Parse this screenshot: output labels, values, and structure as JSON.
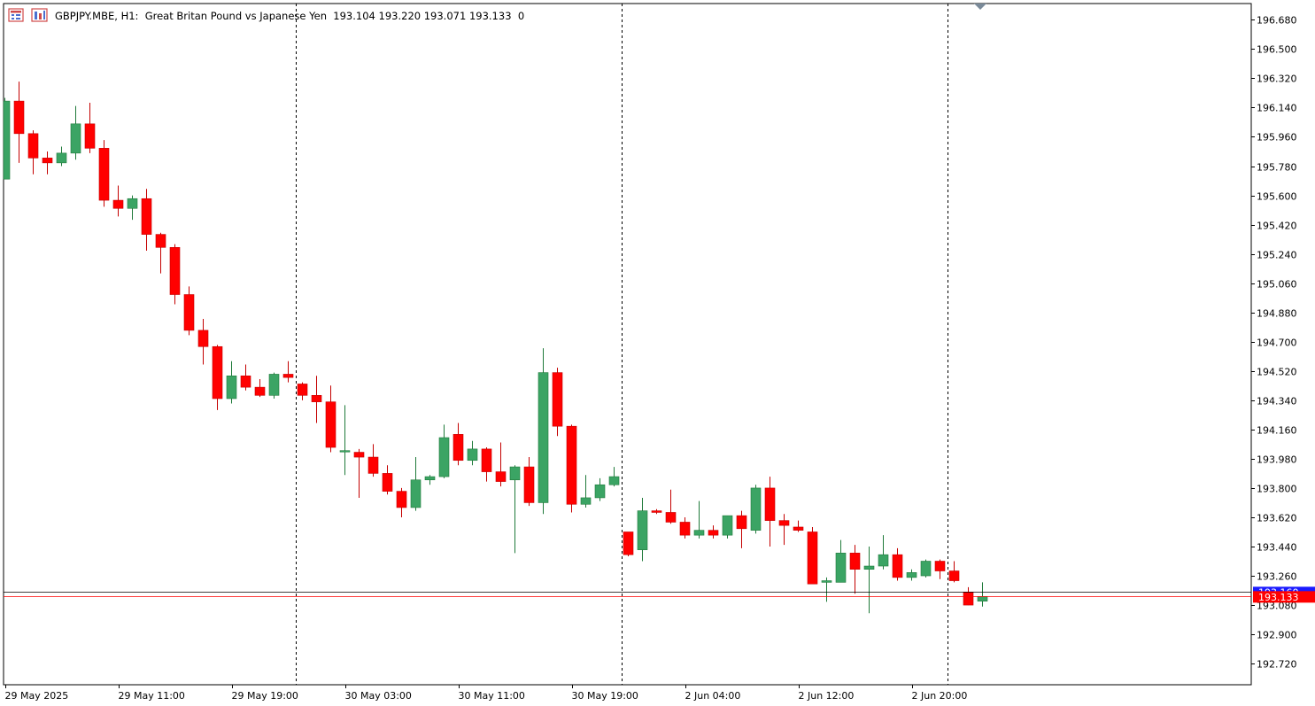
{
  "header": {
    "symbol": "GBPJPY.MBE",
    "timeframe": "H1",
    "description": "Great Britan Pound vs Japanese Yen",
    "open": "193.104",
    "high": "193.220",
    "low": "193.071",
    "close": "193.133",
    "volume": "0"
  },
  "price_tags": {
    "ask": "193.160",
    "bid": "193.133"
  },
  "colors": {
    "bull": "#3ba464",
    "bear": "#ff0000",
    "ask_line": "#1a1aff",
    "bid_line": "#ff0000",
    "grid": "#000000",
    "axis": "#000000"
  },
  "icons": [
    "menu-icon",
    "chart-type-icon"
  ],
  "chart_data": {
    "type": "candlestick",
    "ylim": [
      192.59,
      196.78
    ],
    "y_ticks": [
      "196.680",
      "196.500",
      "196.320",
      "196.140",
      "195.960",
      "195.780",
      "195.600",
      "195.420",
      "195.240",
      "195.060",
      "194.880",
      "194.700",
      "194.520",
      "194.340",
      "194.160",
      "193.980",
      "193.800",
      "193.620",
      "193.440",
      "193.260",
      "193.080",
      "192.900",
      "192.720"
    ],
    "x_ticks": [
      {
        "label": "29 May 2025",
        "bar": 0
      },
      {
        "label": "29 May 11:00",
        "bar": 8
      },
      {
        "label": "29 May 19:00",
        "bar": 16
      },
      {
        "label": "30 May 03:00",
        "bar": 24
      },
      {
        "label": "30 May 11:00",
        "bar": 32
      },
      {
        "label": "30 May 19:00",
        "bar": 40
      },
      {
        "label": "2 Jun 04:00",
        "bar": 48
      },
      {
        "label": "2 Jun 12:00",
        "bar": 56
      },
      {
        "label": "2 Jun 20:00",
        "bar": 64
      }
    ],
    "day_separators": [
      21,
      44,
      67
    ],
    "candles": [
      [
        195.7,
        196.2,
        195.7,
        196.18
      ],
      [
        196.18,
        196.3,
        195.8,
        195.98
      ],
      [
        195.98,
        196.0,
        195.73,
        195.83
      ],
      [
        195.83,
        195.87,
        195.73,
        195.8
      ],
      [
        195.8,
        195.9,
        195.78,
        195.86
      ],
      [
        195.86,
        196.15,
        195.82,
        196.04
      ],
      [
        196.04,
        196.17,
        195.86,
        195.89
      ],
      [
        195.89,
        195.94,
        195.53,
        195.57
      ],
      [
        195.57,
        195.66,
        195.47,
        195.52
      ],
      [
        195.52,
        195.6,
        195.45,
        195.58
      ],
      [
        195.58,
        195.64,
        195.26,
        195.36
      ],
      [
        195.36,
        195.37,
        195.12,
        195.28
      ],
      [
        195.28,
        195.3,
        194.93,
        194.99
      ],
      [
        194.99,
        195.04,
        194.74,
        194.77
      ],
      [
        194.77,
        194.84,
        194.56,
        194.67
      ],
      [
        194.67,
        194.68,
        194.28,
        194.35
      ],
      [
        194.35,
        194.58,
        194.32,
        194.49
      ],
      [
        194.49,
        194.56,
        194.4,
        194.42
      ],
      [
        194.42,
        194.47,
        194.36,
        194.37
      ],
      [
        194.37,
        194.51,
        194.35,
        194.5
      ],
      [
        194.5,
        194.58,
        194.45,
        194.48
      ],
      [
        194.44,
        194.45,
        194.34,
        194.37
      ],
      [
        194.37,
        194.49,
        194.2,
        194.33
      ],
      [
        194.33,
        194.43,
        194.02,
        194.05
      ],
      [
        194.03,
        194.31,
        193.88,
        194.03
      ],
      [
        194.02,
        194.04,
        193.74,
        193.99
      ],
      [
        193.99,
        194.07,
        193.87,
        193.89
      ],
      [
        193.89,
        193.94,
        193.76,
        193.78
      ],
      [
        193.78,
        193.8,
        193.62,
        193.68
      ],
      [
        193.68,
        193.99,
        193.66,
        193.85
      ],
      [
        193.85,
        193.88,
        193.82,
        193.87
      ],
      [
        193.87,
        194.19,
        193.86,
        194.11
      ],
      [
        194.13,
        194.2,
        193.94,
        193.97
      ],
      [
        193.97,
        194.09,
        193.94,
        194.04
      ],
      [
        194.04,
        194.05,
        193.84,
        193.9
      ],
      [
        193.9,
        194.08,
        193.81,
        193.84
      ],
      [
        193.85,
        193.94,
        193.4,
        193.93
      ],
      [
        193.93,
        193.99,
        193.69,
        193.71
      ],
      [
        193.71,
        194.66,
        193.64,
        194.51
      ],
      [
        194.51,
        194.54,
        194.12,
        194.18
      ],
      [
        194.18,
        194.19,
        193.65,
        193.7
      ],
      [
        193.7,
        193.88,
        193.68,
        193.74
      ],
      [
        193.74,
        193.86,
        193.72,
        193.82
      ],
      [
        193.82,
        193.93,
        193.81,
        193.87
      ],
      [
        193.53,
        193.53,
        193.38,
        193.39
      ],
      [
        193.42,
        193.74,
        193.35,
        193.66
      ],
      [
        193.66,
        193.67,
        193.64,
        193.65
      ],
      [
        193.65,
        193.79,
        193.58,
        193.59
      ],
      [
        193.59,
        193.62,
        193.49,
        193.51
      ],
      [
        193.51,
        193.72,
        193.49,
        193.54
      ],
      [
        193.54,
        193.57,
        193.49,
        193.51
      ],
      [
        193.51,
        193.63,
        193.49,
        193.63
      ],
      [
        193.63,
        193.66,
        193.43,
        193.55
      ],
      [
        193.54,
        193.82,
        193.52,
        193.8
      ],
      [
        193.8,
        193.87,
        193.44,
        193.6
      ],
      [
        193.6,
        193.64,
        193.45,
        193.57
      ],
      [
        193.56,
        193.6,
        193.53,
        193.54
      ],
      [
        193.53,
        193.56,
        193.21,
        193.21
      ],
      [
        193.22,
        193.25,
        193.1,
        193.23
      ],
      [
        193.22,
        193.48,
        193.22,
        193.4
      ],
      [
        193.4,
        193.45,
        193.15,
        193.3
      ],
      [
        193.3,
        193.44,
        193.03,
        193.32
      ],
      [
        193.32,
        193.51,
        193.3,
        193.39
      ],
      [
        193.39,
        193.43,
        193.23,
        193.25
      ],
      [
        193.25,
        193.3,
        193.23,
        193.28
      ],
      [
        193.26,
        193.36,
        193.25,
        193.35
      ],
      [
        193.35,
        193.36,
        193.24,
        193.29
      ],
      [
        193.29,
        193.35,
        193.22,
        193.23
      ],
      [
        193.16,
        193.19,
        193.08,
        193.08
      ],
      [
        193.104,
        193.22,
        193.071,
        193.133
      ]
    ]
  }
}
